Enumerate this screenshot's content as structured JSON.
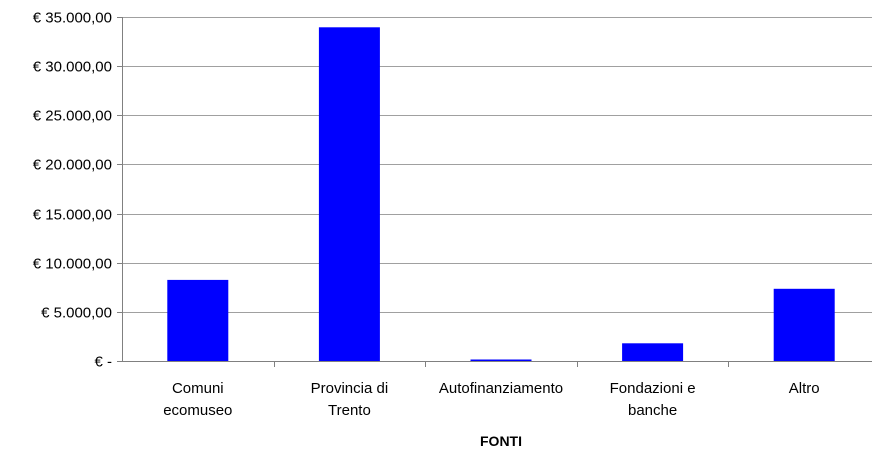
{
  "chart_data": {
    "type": "bar",
    "categories": [
      [
        "Comuni",
        "ecomuseo"
      ],
      [
        "Provincia di",
        "Trento"
      ],
      [
        "Autofinanziamento"
      ],
      [
        "Fondazioni e",
        "banche"
      ],
      [
        "Altro"
      ]
    ],
    "values": [
      8250,
      33950,
      150,
      1800,
      7350
    ],
    "title": "",
    "xlabel": "FONTI",
    "ylabel": "",
    "ylim": [
      0,
      35000
    ],
    "yticks": [
      0,
      5000,
      10000,
      15000,
      20000,
      25000,
      30000,
      35000
    ],
    "ytick_labels": [
      "€ -",
      "€ 5.000,00",
      "€ 10.000,00",
      "€ 15.000,00",
      "€ 20.000,00",
      "€ 25.000,00",
      "€ 30.000,00",
      "€ 35.000,00"
    ],
    "grid": true,
    "legend": "none",
    "colors": {
      "bar": "#0000ff",
      "grid": "#a0a0a0",
      "axis": "#808080",
      "text": "#000000"
    }
  }
}
